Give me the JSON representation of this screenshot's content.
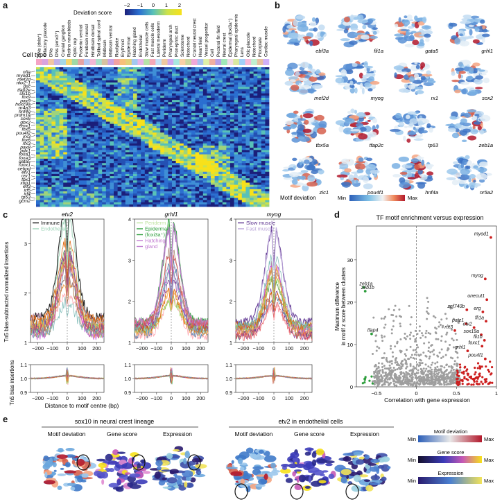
{
  "panels": {
    "a": "a",
    "b": "b",
    "c": "c",
    "d": "d",
    "e": "e"
  },
  "panel_a": {
    "colorbar_label": "Deviation score",
    "colorbar_ticks": [
      "−2",
      "−1",
      "0",
      "1",
      "2"
    ],
    "cell_type_label": "Cell type",
    "cell_types": [
      "DNs (dxla⁺)",
      "Olfactory placode",
      "DNs",
      "DNs (emx3⁺)",
      "Cranial ganglion",
      "Retina neuroblasts",
      "Optic cup",
      "Posterior ventral",
      "Forebrain neural",
      "Hindbrain dorsal",
      "Tailbud spinal cord",
      "Midbrain",
      "Midbrain ventral",
      "Roofplate",
      "Erythroid",
      "Epidermal",
      "Hatching gland",
      "Endothelial",
      "Slow muscle cells",
      "Fast muscle cells",
      "Lateral mesoderm",
      "Periderm",
      "Pharyngeal arch",
      "Pronephric duct",
      "Sclerotome",
      "Notochord",
      "Cranial neural crest",
      "Heart field",
      "Vessel progenitor",
      "Cell",
      "Pectoral fin field",
      "Neural crest",
      "Epidermal (foxi3a⁺)",
      "Pharyngeal epidermis",
      "Lens",
      "Otic placode",
      "Notochord",
      "Floorplate",
      "Cardiac muscle"
    ],
    "genes": [
      "nfia",
      "myod1",
      "mef2d",
      "nkx2-1",
      "gsc",
      "tfap2e",
      "six1b",
      "lhx9",
      "pax9",
      "hoxc9a",
      "nr4a3",
      "hnf4g",
      "prdm1a",
      "sox6",
      "gbx2",
      "emx1",
      "lhx5",
      "pou4f2",
      "irx3",
      "lhx6",
      "rfx3",
      "pax8",
      "pdx1",
      "foxa1",
      "foxa3",
      "gata5",
      "runx1",
      "cebpd",
      "etv1",
      "osr1",
      "tbx1",
      "xbp1",
      "elf3",
      "irf5",
      "irf4",
      "tp53",
      "gcm2"
    ]
  },
  "panel_b": {
    "genes": [
      "ebf3a",
      "fli1a",
      "gata5",
      "grhl1",
      "mef2d",
      "myog",
      "rx1",
      "sox2",
      "tbx5a",
      "tfap2c",
      "tp63",
      "zeb1a",
      "zic1",
      "pou4f1",
      "hnf4a",
      "nr5a2"
    ],
    "legend_label": "Motif deviation",
    "legend_min": "Min",
    "legend_max": "Max"
  },
  "panel_c": {
    "ylabel_top": "Tn5 bias-subtracted normalized insertions",
    "ylabel_bottom": "Tn5 bias insertions",
    "xlabel": "Distance to motif centre (bp)",
    "subpanels": [
      {
        "title": "etv2",
        "legend": [
          {
            "label": "Immune",
            "color": "#111111"
          },
          {
            "label": "Endothelial",
            "color": "#9fd4b8"
          }
        ],
        "ylim": [
          1,
          3.5
        ],
        "yticks": [
          "1",
          "2",
          "3"
        ],
        "peak": 3.5,
        "bottom_ylim": [
          0.9,
          1.1
        ],
        "bottom_yticks": [
          "0.9",
          "1.0",
          "1.1"
        ]
      },
      {
        "title": "grhl1",
        "legend": [
          {
            "label": "Periderm",
            "color": "#bfe3a0"
          },
          {
            "label": "Epidermal",
            "color": "#2e9e3d"
          },
          {
            "label": "(foxi3a⁺)",
            "color": "#2e9e3d"
          },
          {
            "label": "Hatching",
            "color": "#c07ad0"
          },
          {
            "label": "gland",
            "color": "#c07ad0"
          }
        ],
        "ylim": [
          1,
          4
        ],
        "yticks": [
          "1",
          "2",
          "3",
          "4"
        ],
        "peak": 3.8,
        "bottom_ylim": [
          0.9,
          1.1
        ],
        "bottom_yticks": [
          "0.9",
          "1.0",
          "1.1"
        ]
      },
      {
        "title": "myog",
        "legend": [
          {
            "label": "Slow muscle",
            "color": "#5a2f8e"
          },
          {
            "label": "Fast muscle",
            "color": "#b9a3d8"
          }
        ],
        "ylim": [
          1,
          4
        ],
        "yticks": [
          "1",
          "2",
          "3",
          "4"
        ],
        "peak": 3.6,
        "bottom_ylim": [
          0.9,
          1.1
        ],
        "bottom_yticks": [
          "0.9",
          "1.0",
          "1.1"
        ]
      }
    ],
    "xticks": [
      "−200",
      "−100",
      "0",
      "100",
      "200"
    ],
    "xrange": [
      -250,
      250
    ]
  },
  "chart_data": {
    "type": "scatter",
    "title": "TF motif enrichment versus expression",
    "xlabel": "Correlation with gene expression",
    "ylabel_line1": "Maximum difference",
    "ylabel_line2": "in motif z score between clusters",
    "xlim": [
      -0.75,
      1.0
    ],
    "ylim": [
      0,
      38
    ],
    "xticks": [
      -0.5,
      0,
      0.5,
      1
    ],
    "xtick_labels": [
      "−0.5",
      "0",
      "0.5",
      "1"
    ],
    "yticks": [
      0,
      10,
      20,
      30
    ],
    "ytick_labels": [
      "0",
      "10",
      "20",
      "30"
    ],
    "labeled_points": [
      {
        "label": "zeb1a",
        "x": -0.66,
        "y": 23.5,
        "group": "negative",
        "color": "#2e9e3d"
      },
      {
        "label": "zeb1b",
        "x": -0.64,
        "y": 22.6,
        "group": "negative",
        "color": "#2e9e3d"
      },
      {
        "label": "tfap4",
        "x": -0.56,
        "y": 12.5,
        "group": "negative",
        "color": "#2e9e3d"
      },
      {
        "label": "myod1",
        "x": 0.93,
        "y": 35.3,
        "group": "positive",
        "color": "#cc1f1f"
      },
      {
        "label": "myog",
        "x": 0.86,
        "y": 25.5,
        "group": "positive",
        "color": "#cc1f1f"
      },
      {
        "label": "onecut1",
        "x": 0.88,
        "y": 20.6,
        "group": "positive",
        "color": "#cc1f1f"
      },
      {
        "label": "znf740b",
        "x": 0.63,
        "y": 18.2,
        "group": "positive",
        "color": "#cc1f1f"
      },
      {
        "label": "erg",
        "x": 0.83,
        "y": 17.7,
        "group": "positive",
        "color": "#cc1f1f"
      },
      {
        "label": "fli1a",
        "x": 0.87,
        "y": 15.5,
        "group": "positive",
        "color": "#cc1f1f"
      },
      {
        "label": "patz1",
        "x": 0.62,
        "y": 14.9,
        "group": "positive",
        "color": "#cc1f1f"
      },
      {
        "label": "etv2",
        "x": 0.72,
        "y": 14.0,
        "group": "positive",
        "color": "#cc1f1f"
      },
      {
        "label": "rfx3",
        "x": 0.48,
        "y": 13.3,
        "group": "positive",
        "color": "#cc1f1f"
      },
      {
        "label": "sox19a",
        "x": 0.81,
        "y": 12.3,
        "group": "positive",
        "color": "#cc1f1f"
      },
      {
        "label": "fli1b",
        "x": 0.85,
        "y": 11.0,
        "group": "positive",
        "color": "#cc1f1f"
      },
      {
        "label": "foxc1",
        "x": 0.82,
        "y": 9.6,
        "group": "positive",
        "color": "#cc1f1f"
      },
      {
        "label": "grhl1",
        "x": 0.64,
        "y": 8.5,
        "group": "positive",
        "color": "#cc1f1f"
      },
      {
        "label": "pou4f1",
        "x": 0.86,
        "y": 6.6,
        "group": "positive",
        "color": "#cc1f1f"
      }
    ]
  },
  "panel_e": {
    "left_title": "sox10 in neural crest lineage",
    "right_title": "etv2 in endothelial cells",
    "sublabels": [
      "Motif deviation",
      "Gene score",
      "Expression"
    ],
    "legends": [
      {
        "title": "Motif deviation",
        "min": "Min",
        "max": "Max"
      },
      {
        "title": "Gene score",
        "min": "Min",
        "max": "Max"
      },
      {
        "title": "Expression",
        "min": "Min",
        "max": "Max"
      }
    ]
  }
}
